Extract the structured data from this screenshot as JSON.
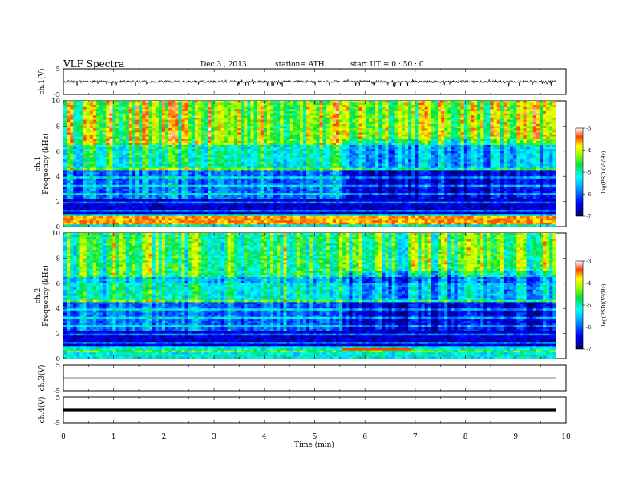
{
  "header": {
    "title": "VLF  Spectra",
    "date": "Dec.3  , 2013",
    "station": "station= ATH",
    "start": "start  UT =   0 : 50 : 0"
  },
  "chart_data": [
    {
      "type": "line",
      "name": "ch1-waveform",
      "ylabel": "ch.1(V)",
      "ylim": [
        -5,
        5
      ],
      "yticks": [
        "5",
        "-5"
      ],
      "xlim": [
        0,
        10
      ],
      "note_series": "noisy waveform centered near 0 V with frequent downward spikes reaching about -2 V",
      "baseline": 0,
      "spike_range": [
        -2.2,
        1.0
      ]
    },
    {
      "type": "heatmap",
      "name": "ch1-spectrogram",
      "ylabel": "ch.1\nFrequency  (kHz)",
      "ylim": [
        0,
        10
      ],
      "yticks": [
        "0",
        "2",
        "4",
        "6",
        "8",
        "10"
      ],
      "xlim": [
        0,
        9.8
      ],
      "colorbar": {
        "label": "log(PSD)(V²/Hz)",
        "range": [
          -7,
          -3
        ],
        "ticks": [
          "-3",
          "-4",
          "-5",
          "-6",
          "-7"
        ]
      },
      "low_freq_band_kHz": [
        0.2,
        0.8
      ],
      "quiet_region_min": [
        5.55,
        9.8
      ]
    },
    {
      "type": "heatmap",
      "name": "ch2-spectrogram",
      "ylabel": "ch.2\nFrequency  (kHz)",
      "ylim": [
        0,
        10
      ],
      "yticks": [
        "0",
        "2",
        "4",
        "6",
        "8",
        "10"
      ],
      "xlim": [
        0,
        9.8
      ],
      "colorbar": {
        "label": "log(PSD)(V²/Hz)",
        "range": [
          -7,
          -3
        ],
        "ticks": [
          "-3",
          "-4",
          "-5",
          "-6",
          "-7"
        ]
      },
      "red_band_min": [
        5.55,
        6.9
      ],
      "red_band_kHz": [
        0.6,
        0.9
      ]
    },
    {
      "type": "line",
      "name": "ch3-waveform",
      "ylabel": "ch.3(V)",
      "ylim": [
        -5,
        5
      ],
      "yticks": [
        "5",
        "-5"
      ],
      "xlim": [
        0,
        9.8
      ],
      "level": 0
    },
    {
      "type": "line",
      "name": "ch4-waveform",
      "ylabel": "ch.4(V)",
      "ylim": [
        -5,
        5
      ],
      "yticks": [
        "5",
        "-5"
      ],
      "xlim": [
        0,
        9.8
      ],
      "level": 0
    }
  ],
  "xaxis": {
    "label": "Time  (min)",
    "ticks": [
      "0",
      "1",
      "2",
      "3",
      "4",
      "5",
      "6",
      "7",
      "8",
      "9",
      "10"
    ],
    "range": [
      0,
      10
    ]
  },
  "colors": {
    "low": "#000080",
    "mid": "#00c8ff",
    "green": "#2ee26a",
    "yellow": "#f4ee1a",
    "high": "#e01010"
  }
}
